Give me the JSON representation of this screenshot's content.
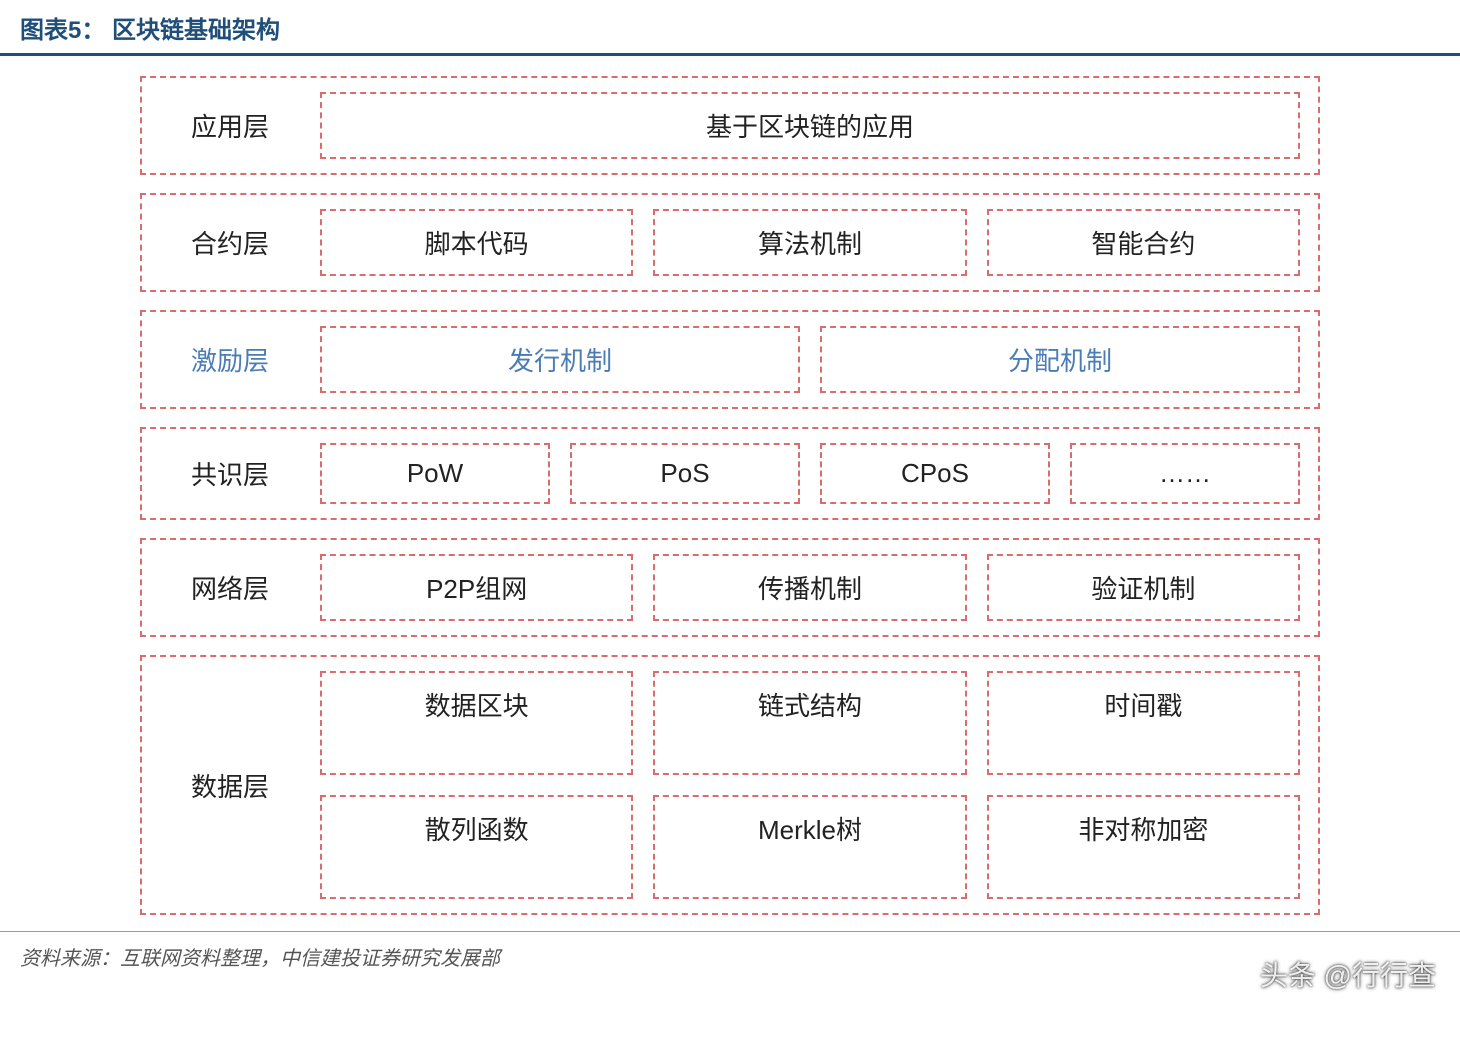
{
  "title": "图表5：  区块链基础架构",
  "colors": {
    "border_dashed": "#d96c6c",
    "header_rule": "#1f4e79",
    "text_default": "#222222",
    "text_blue": "#4a7db5",
    "background": "#ffffff"
  },
  "font_sizes": {
    "title": 24,
    "layer_label": 26,
    "item": 26,
    "source": 20,
    "watermark": 28
  },
  "layers": [
    {
      "name": "应用层",
      "style": "default",
      "rows": [
        [
          "基于区块链的应用"
        ]
      ]
    },
    {
      "name": "合约层",
      "style": "default",
      "rows": [
        [
          "脚本代码",
          "算法机制",
          "智能合约"
        ]
      ]
    },
    {
      "name": "激励层",
      "style": "blue",
      "rows": [
        [
          "发行机制",
          "分配机制"
        ]
      ]
    },
    {
      "name": "共识层",
      "style": "default",
      "rows": [
        [
          "PoW",
          "PoS",
          "CPoS",
          "……"
        ]
      ]
    },
    {
      "name": "网络层",
      "style": "default",
      "rows": [
        [
          "P2P组网",
          "传播机制",
          "验证机制"
        ]
      ]
    },
    {
      "name": "数据层",
      "style": "default",
      "rows": [
        [
          "数据区块",
          "链式结构",
          "时间戳"
        ],
        [
          "散列函数",
          "Merkle树",
          "非对称加密"
        ]
      ]
    }
  ],
  "source": "资料来源：互联网资料整理，中信建投证券研究发展部",
  "watermark": "头条 @行行查"
}
